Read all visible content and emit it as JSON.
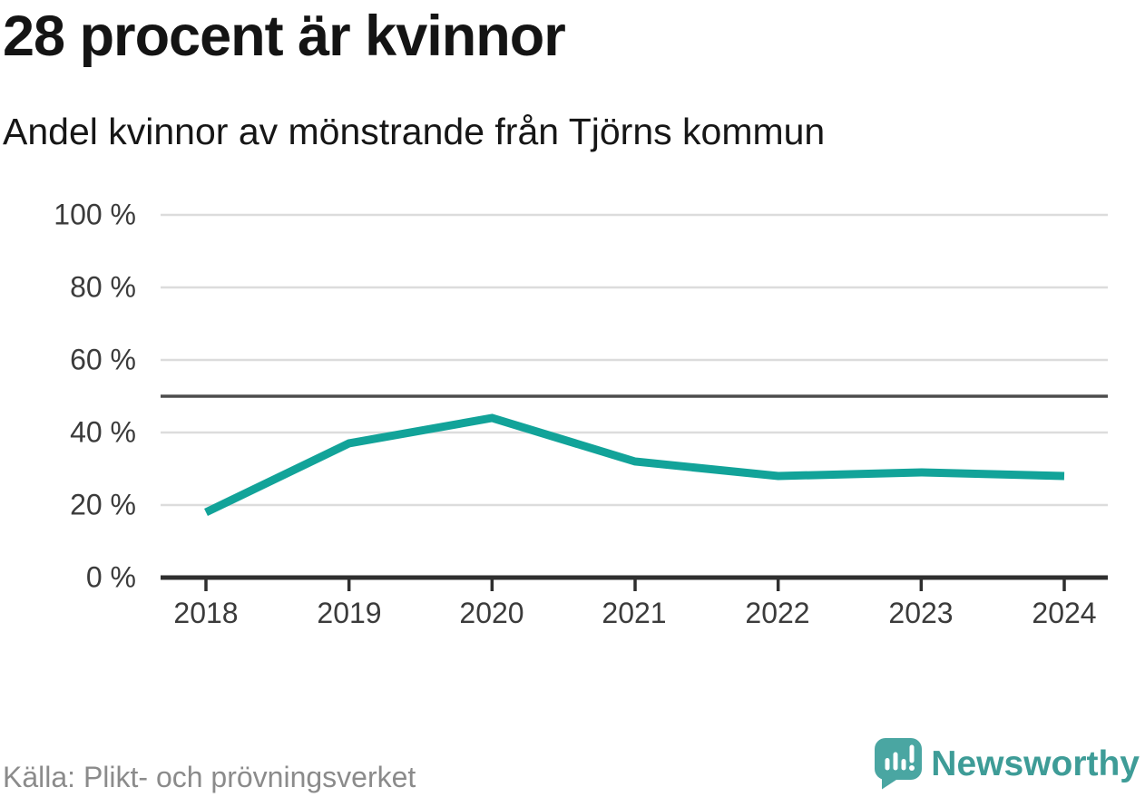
{
  "header": {
    "title": "28 procent är kvinnor",
    "subtitle": "Andel kvinnor av mönstrande från Tjörns kommun"
  },
  "chart_data": {
    "type": "line",
    "title": "28 procent är kvinnor",
    "subtitle": "Andel kvinnor av mönstrande från Tjörns kommun",
    "categories": [
      "2018",
      "2019",
      "2020",
      "2021",
      "2022",
      "2023",
      "2024"
    ],
    "series": [
      {
        "name": "Andel kvinnor av mönstrande",
        "values": [
          18,
          37,
          44,
          32,
          28,
          29,
          28
        ]
      }
    ],
    "unit": "%",
    "ylim": [
      0,
      100
    ],
    "y_ticks": [
      0,
      20,
      40,
      60,
      80,
      100
    ],
    "y_tick_labels": [
      "0 %",
      "20 %",
      "40 %",
      "60 %",
      "80 %",
      "100 %"
    ],
    "reference_line": 50,
    "grid": "horizontal",
    "legend": "none",
    "colors": {
      "line": "#12a399",
      "grid": "#dcdcdc",
      "reference": "#4d4d4d",
      "axis": "#2f2f2f"
    }
  },
  "footer": {
    "source": "Källa: Plikt- och prövningsverket",
    "brand": "Newsworthy",
    "brand_color": "#3e9c97",
    "logo_color": "#4aa6a2"
  }
}
